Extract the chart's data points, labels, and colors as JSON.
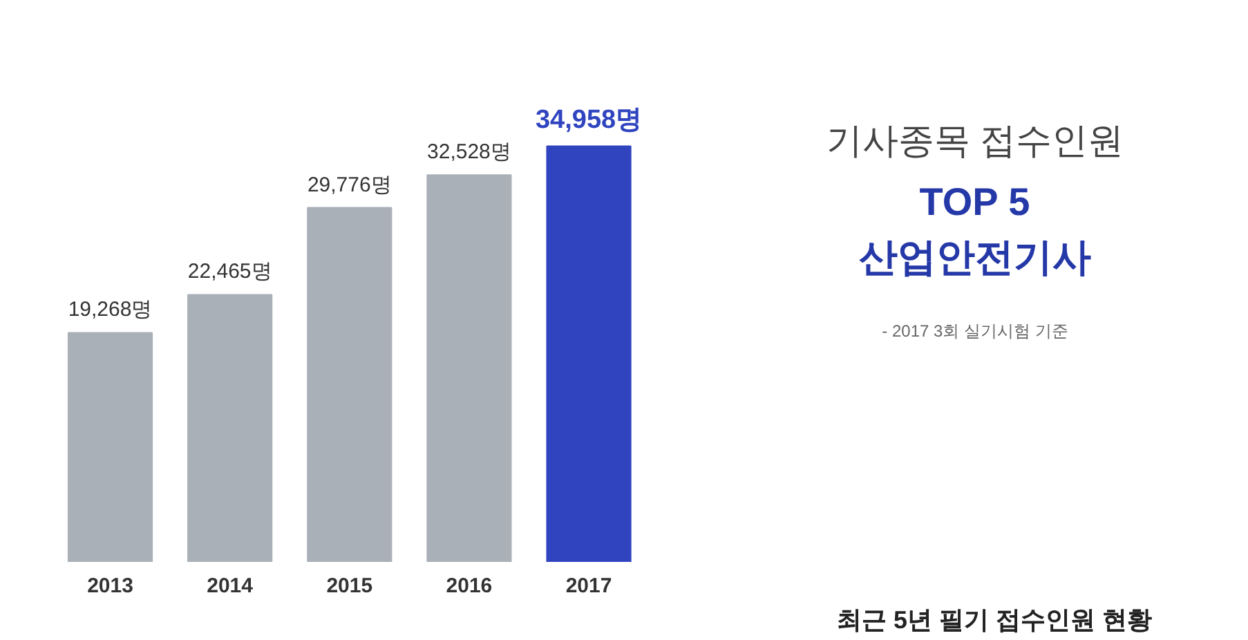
{
  "chart_data": {
    "type": "bar",
    "title": "최근 5년 필기 접수인원 현황",
    "categories": [
      "2013",
      "2014",
      "2015",
      "2016",
      "2017"
    ],
    "values": [
      19268,
      22465,
      29776,
      32528,
      34958
    ],
    "colors": [
      "#aab0b8",
      "#aab0b8",
      "#aab0b8",
      "#aab0b8",
      "#3044c0"
    ],
    "value_labels": [
      "19,268명",
      "22,465명",
      "29,776명",
      "32,528명",
      "34,958명"
    ],
    "annotations": [
      "기사종목 접수인원",
      "TOP 5",
      "산업안전기사",
      "- 2017 3회 실기시험 기준"
    ],
    "grid": false
  }
}
